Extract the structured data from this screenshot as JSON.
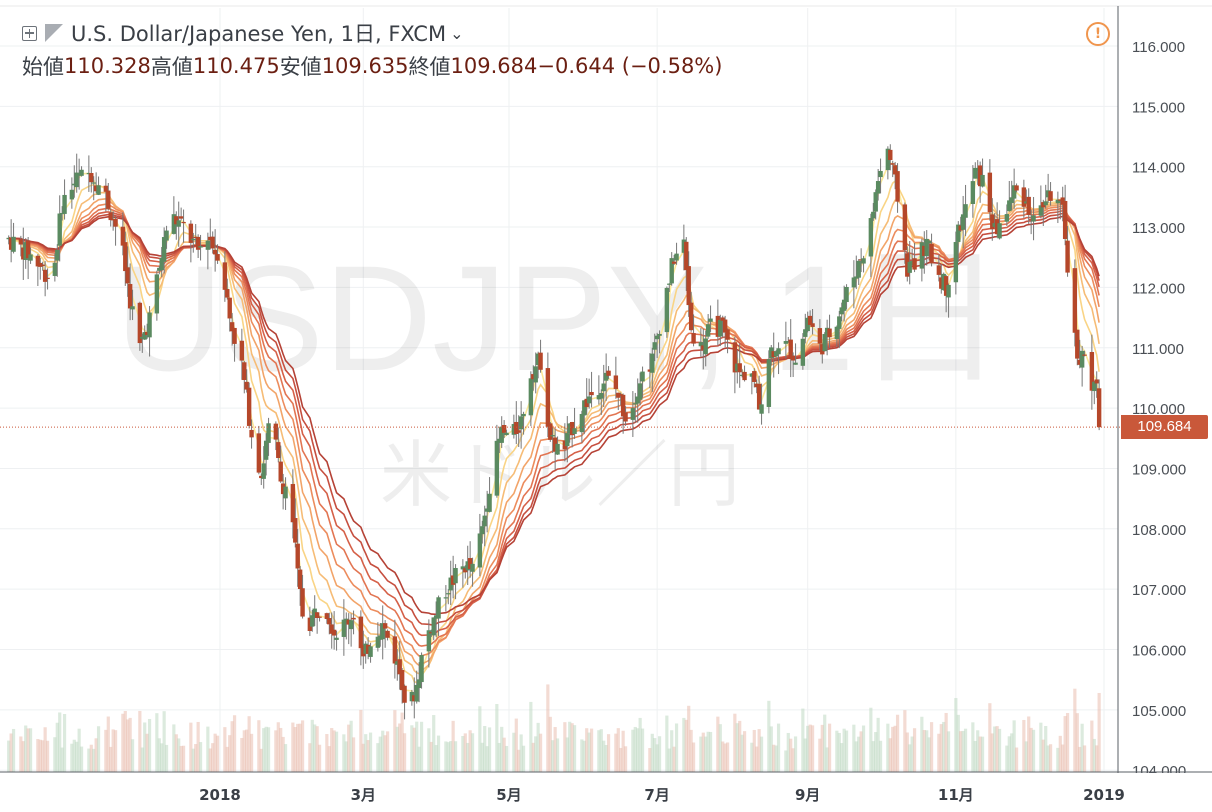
{
  "legend": {
    "title": "U.S. Dollar/Japanese Yen, 1日, FXCM",
    "open_label": "始値",
    "open": "110.328",
    "high_label": "高値",
    "high": "110.475",
    "low_label": "安値",
    "low": "109.635",
    "close_label": "終値",
    "close": "109.684",
    "change": "−0.644 (−0.58%)"
  },
  "watermark": {
    "symbol": "USDJPY, 1日",
    "subtitle": "米ドル／円"
  },
  "price_tag": "109.684",
  "colors": {
    "up_candle": "#5a8a60",
    "down_candle": "#b5472a",
    "wick": "#777777",
    "price_line": "#c9583a",
    "ribbon": [
      "#fce99a",
      "#f9d485",
      "#f6bc76",
      "#f2a469",
      "#ec8c5d",
      "#e27552",
      "#d56048",
      "#c64f3f",
      "#b54236"
    ]
  },
  "chart_data": {
    "type": "candlestick",
    "symbol": "USDJPY",
    "timeframe": "1D",
    "ylim": [
      104.0,
      116.3
    ],
    "y_ticks": [
      "104.000",
      "105.000",
      "106.000",
      "107.000",
      "108.000",
      "109.000",
      "110.000",
      "111.000",
      "112.000",
      "113.000",
      "114.000",
      "115.000",
      "116.000"
    ],
    "x_ticks": [
      {
        "label": "2018",
        "day": 47
      },
      {
        "label": "3月",
        "day": 106
      },
      {
        "label": "5月",
        "day": 166
      },
      {
        "label": "7月",
        "day": 227
      },
      {
        "label": "9月",
        "day": 289
      },
      {
        "label": "11月",
        "day": 350
      },
      {
        "label": "2019",
        "day": 411
      }
    ],
    "x_range_days": [
      -40,
      413
    ],
    "anchors": [
      [
        -40,
        112.8
      ],
      [
        -30,
        112.5
      ],
      [
        -22,
        112.1
      ],
      [
        -18,
        113.4
      ],
      [
        -12,
        113.8
      ],
      [
        -6,
        113.9
      ],
      [
        0,
        113.5
      ],
      [
        6,
        112.8
      ],
      [
        10,
        111.8
      ],
      [
        14,
        111.0
      ],
      [
        18,
        111.5
      ],
      [
        22,
        112.3
      ],
      [
        26,
        113.2
      ],
      [
        32,
        113.0
      ],
      [
        38,
        112.6
      ],
      [
        42,
        112.9
      ],
      [
        45,
        112.6
      ],
      [
        47,
        112.6
      ],
      [
        51,
        111.5
      ],
      [
        56,
        110.7
      ],
      [
        60,
        109.6
      ],
      [
        64,
        108.9
      ],
      [
        68,
        109.9
      ],
      [
        72,
        108.8
      ],
      [
        76,
        108.6
      ],
      [
        79,
        107.2
      ],
      [
        82,
        106.3
      ],
      [
        86,
        106.6
      ],
      [
        90,
        106.8
      ],
      [
        94,
        106.3
      ],
      [
        98,
        106.4
      ],
      [
        102,
        106.6
      ],
      [
        106,
        105.8
      ],
      [
        110,
        106.3
      ],
      [
        114,
        106.4
      ],
      [
        118,
        106.0
      ],
      [
        122,
        105.5
      ],
      [
        124,
        104.9
      ],
      [
        128,
        105.4
      ],
      [
        131,
        106.1
      ],
      [
        135,
        106.5
      ],
      [
        140,
        107.0
      ],
      [
        144,
        107.2
      ],
      [
        148,
        107.4
      ],
      [
        151,
        107.3
      ],
      [
        155,
        108.0
      ],
      [
        159,
        109.0
      ],
      [
        163,
        109.6
      ],
      [
        167,
        109.5
      ],
      [
        171,
        109.8
      ],
      [
        175,
        110.6
      ],
      [
        179,
        110.8
      ],
      [
        183,
        109.5
      ],
      [
        188,
        109.2
      ],
      [
        192,
        109.7
      ],
      [
        196,
        110.0
      ],
      [
        201,
        110.3
      ],
      [
        206,
        110.5
      ],
      [
        210,
        110.3
      ],
      [
        215,
        109.8
      ],
      [
        220,
        110.5
      ],
      [
        225,
        110.8
      ],
      [
        229,
        111.6
      ],
      [
        234,
        112.5
      ],
      [
        238,
        112.7
      ],
      [
        241,
        111.3
      ],
      [
        245,
        111.0
      ],
      [
        250,
        111.4
      ],
      [
        254,
        111.3
      ],
      [
        258,
        110.8
      ],
      [
        262,
        110.5
      ],
      [
        265,
        110.8
      ],
      [
        269,
        110.0
      ],
      [
        273,
        110.9
      ],
      [
        277,
        111.1
      ],
      [
        281,
        111.0
      ],
      [
        285,
        110.8
      ],
      [
        289,
        111.5
      ],
      [
        294,
        111.0
      ],
      [
        299,
        111.3
      ],
      [
        304,
        111.8
      ],
      [
        309,
        112.3
      ],
      [
        314,
        112.8
      ],
      [
        318,
        113.8
      ],
      [
        322,
        114.3
      ],
      [
        326,
        113.5
      ],
      [
        330,
        112.3
      ],
      [
        334,
        112.5
      ],
      [
        338,
        112.7
      ],
      [
        342,
        112.3
      ],
      [
        346,
        112.0
      ],
      [
        350,
        112.8
      ],
      [
        354,
        113.3
      ],
      [
        358,
        113.9
      ],
      [
        362,
        113.7
      ],
      [
        366,
        112.9
      ],
      [
        370,
        113.2
      ],
      [
        374,
        113.6
      ],
      [
        378,
        113.5
      ],
      [
        382,
        113.1
      ],
      [
        386,
        113.4
      ],
      [
        390,
        113.6
      ],
      [
        394,
        113.2
      ],
      [
        396,
        112.4
      ],
      [
        398,
        111.3
      ],
      [
        401,
        110.8
      ],
      [
        403,
        110.9
      ],
      [
        405,
        110.2
      ],
      [
        408,
        110.33
      ],
      [
        409,
        109.684
      ]
    ],
    "last_bar": {
      "open": 110.328,
      "high": 110.475,
      "low": 109.635,
      "close": 109.684
    },
    "moving_average_ribbon": {
      "count": 9,
      "shortest": 3,
      "longest": 40
    }
  }
}
